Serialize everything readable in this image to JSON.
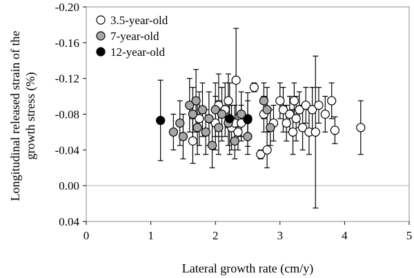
{
  "chart_data": {
    "type": "scatter",
    "title": "",
    "xlabel": "Lateral growth rate (cm/y)",
    "ylabel_lines": [
      "Longitudinal released strain of the",
      "growth stress (%)"
    ],
    "xlim": [
      0,
      5
    ],
    "ylim": [
      -0.2,
      0.04
    ],
    "y_inverted": true,
    "x_ticks": [
      0,
      1,
      2,
      3,
      4,
      5
    ],
    "x_tick_labels": [
      "0",
      "1",
      "2",
      "3",
      "4",
      "5"
    ],
    "y_ticks": [
      -0.2,
      -0.16,
      -0.12,
      -0.08,
      -0.04,
      0.0,
      0.04
    ],
    "y_tick_labels": [
      "-0.20",
      "-0.16",
      "-0.12",
      "-0.08",
      "-0.04",
      "0.00",
      "0.04"
    ],
    "zero_line": 0.0,
    "legend_position": "top-left",
    "series": [
      {
        "name": "3.5-year-old",
        "fill": "#ffffff",
        "stroke": "#000000",
        "points": [
          {
            "x": 1.65,
            "y": -0.05,
            "err": 0.025
          },
          {
            "x": 1.75,
            "y": -0.075,
            "err": 0.03
          },
          {
            "x": 2.0,
            "y": -0.07,
            "err": 0.03
          },
          {
            "x": 2.05,
            "y": -0.09,
            "err": 0.035
          },
          {
            "x": 2.15,
            "y": -0.085,
            "err": 0.03
          },
          {
            "x": 2.2,
            "y": -0.095,
            "err": 0.03
          },
          {
            "x": 2.25,
            "y": -0.065,
            "err": 0.025
          },
          {
            "x": 2.3,
            "y": -0.07,
            "err": 0.02
          },
          {
            "x": 2.35,
            "y": -0.06,
            "err": 0.02
          },
          {
            "x": 2.32,
            "y": -0.118,
            "err": 0.058
          },
          {
            "x": 2.4,
            "y": -0.07,
            "err": 0.02
          },
          {
            "x": 2.5,
            "y": -0.075,
            "err": 0.02
          },
          {
            "x": 2.6,
            "y": -0.11,
            "err": 0.005
          },
          {
            "x": 2.7,
            "y": -0.035,
            "err": 0.005
          },
          {
            "x": 2.75,
            "y": -0.08,
            "err": 0.02
          },
          {
            "x": 2.8,
            "y": -0.04,
            "err": 0.02
          },
          {
            "x": 2.9,
            "y": -0.07,
            "err": 0.02
          },
          {
            "x": 3.0,
            "y": -0.095,
            "err": 0.02
          },
          {
            "x": 3.05,
            "y": -0.085,
            "err": 0.025
          },
          {
            "x": 3.1,
            "y": -0.07,
            "err": 0.02
          },
          {
            "x": 3.15,
            "y": -0.08,
            "err": 0.02
          },
          {
            "x": 3.2,
            "y": -0.06,
            "err": 0.025
          },
          {
            "x": 3.22,
            "y": -0.095,
            "err": 0.02
          },
          {
            "x": 3.25,
            "y": -0.075,
            "err": 0.025
          },
          {
            "x": 3.3,
            "y": -0.085,
            "err": 0.02
          },
          {
            "x": 3.35,
            "y": -0.065,
            "err": 0.025
          },
          {
            "x": 3.4,
            "y": -0.09,
            "err": 0.02
          },
          {
            "x": 3.45,
            "y": -0.06,
            "err": 0.025
          },
          {
            "x": 3.5,
            "y": -0.085,
            "err": 0.025
          },
          {
            "x": 3.55,
            "y": -0.06,
            "err": 0.085
          },
          {
            "x": 3.6,
            "y": -0.09,
            "err": 0.02
          },
          {
            "x": 3.7,
            "y": -0.08,
            "err": 0.02
          },
          {
            "x": 3.8,
            "y": -0.095,
            "err": 0.02
          },
          {
            "x": 3.85,
            "y": -0.062,
            "err": 0.015
          },
          {
            "x": 4.25,
            "y": -0.065,
            "err": 0.03
          }
        ]
      },
      {
        "name": "7-year-old",
        "fill": "#a6a6a6",
        "stroke": "#000000",
        "points": [
          {
            "x": 1.35,
            "y": -0.06,
            "err": 0.02
          },
          {
            "x": 1.45,
            "y": -0.07,
            "err": 0.025
          },
          {
            "x": 1.5,
            "y": -0.055,
            "err": 0.025
          },
          {
            "x": 1.6,
            "y": -0.09,
            "err": 0.03
          },
          {
            "x": 1.65,
            "y": -0.08,
            "err": 0.03
          },
          {
            "x": 1.7,
            "y": -0.095,
            "err": 0.035
          },
          {
            "x": 1.72,
            "y": -0.065,
            "err": 0.03
          },
          {
            "x": 1.8,
            "y": -0.085,
            "err": 0.03
          },
          {
            "x": 1.85,
            "y": -0.06,
            "err": 0.025
          },
          {
            "x": 1.9,
            "y": -0.075,
            "err": 0.03
          },
          {
            "x": 1.95,
            "y": -0.045,
            "err": 0.025
          },
          {
            "x": 2.0,
            "y": -0.085,
            "err": 0.03
          },
          {
            "x": 2.05,
            "y": -0.065,
            "err": 0.03
          },
          {
            "x": 2.1,
            "y": -0.08,
            "err": 0.03
          },
          {
            "x": 2.2,
            "y": -0.07,
            "err": 0.025
          },
          {
            "x": 2.3,
            "y": -0.05,
            "err": 0.02
          },
          {
            "x": 2.4,
            "y": -0.08,
            "err": 0.025
          },
          {
            "x": 2.5,
            "y": -0.055,
            "err": 0.02
          },
          {
            "x": 2.75,
            "y": -0.095,
            "err": 0.02
          },
          {
            "x": 2.8,
            "y": -0.085,
            "err": 0.025
          },
          {
            "x": 2.85,
            "y": -0.065,
            "err": 0.02
          }
        ]
      },
      {
        "name": "12-year-old",
        "fill": "#000000",
        "stroke": "#000000",
        "points": [
          {
            "x": 1.15,
            "y": -0.073,
            "err": 0.045
          },
          {
            "x": 2.22,
            "y": -0.075,
            "err": 0.04
          },
          {
            "x": 2.5,
            "y": -0.074,
            "err": 0.03
          }
        ]
      }
    ]
  }
}
